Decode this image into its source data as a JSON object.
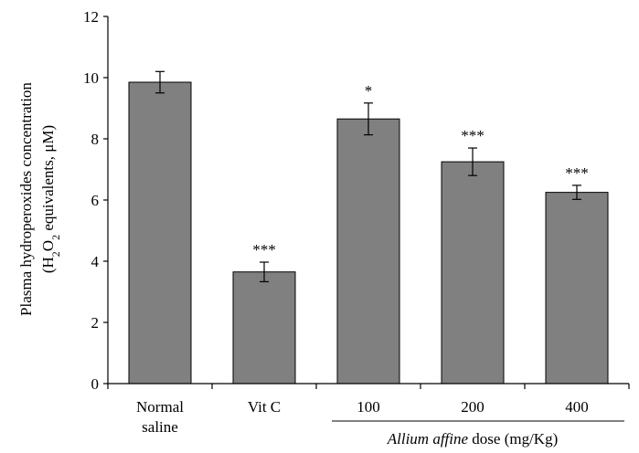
{
  "chart_data": {
    "type": "bar",
    "categories": [
      "Normal saline",
      "Vit C",
      "100",
      "200",
      "400"
    ],
    "category_lines": [
      [
        "Normal",
        "saline"
      ],
      [
        "Vit C"
      ],
      [
        "100"
      ],
      [
        "200"
      ],
      [
        "400"
      ]
    ],
    "values": [
      9.85,
      3.65,
      8.65,
      7.25,
      6.25
    ],
    "errors": [
      0.35,
      0.32,
      0.52,
      0.45,
      0.23
    ],
    "significance": [
      "",
      "***",
      "*",
      "***",
      "***"
    ],
    "ylim": [
      0,
      12
    ],
    "yticks": [
      "0",
      "2",
      "4",
      "6",
      "8",
      "10",
      "12"
    ],
    "ylabel_line1": "Plasma hydroperoxides concentration",
    "ylabel_line2": {
      "open": "(H",
      "sub1": "2",
      "mid": "O",
      "sub2": "2",
      "close": " equivalents, μM)"
    },
    "xlabel": {
      "italic": "Allium affine",
      "rest": " dose (mg/Kg)"
    },
    "bar_color": "#808080",
    "grid": false
  }
}
